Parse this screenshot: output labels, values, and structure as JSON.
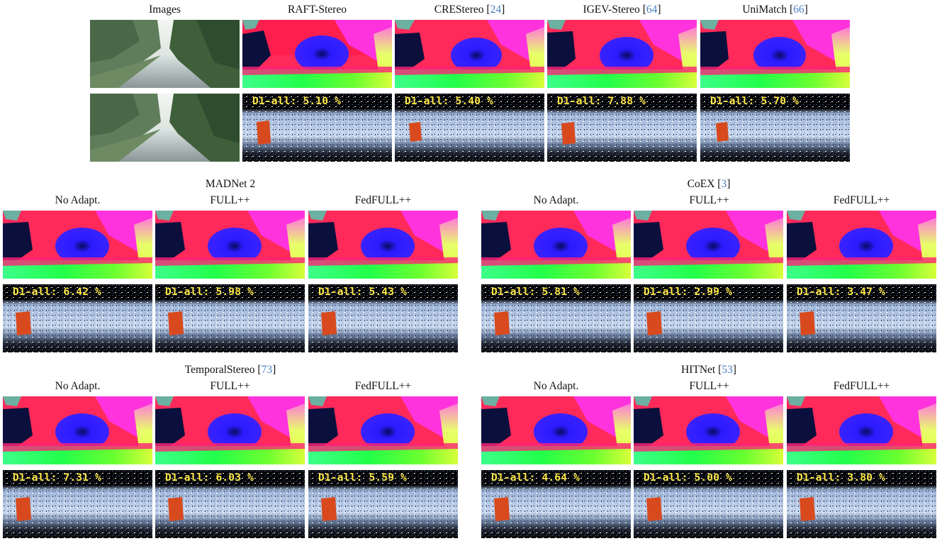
{
  "top": {
    "headers": {
      "images": "Images",
      "raft": "RAFT-Stereo",
      "crestereo": "CREStereo",
      "crestereo_ref": "24",
      "igev": "IGEV-Stereo",
      "igev_ref": "64",
      "unimatch": "UniMatch",
      "unimatch_ref": "66"
    },
    "errors": [
      "D1-all: 5.10 %",
      "D1-all: 5.40 %",
      "D1-all: 7.88 %",
      "D1-all: 5.70 %"
    ]
  },
  "columns": {
    "no_adapt": "No Adapt.",
    "full": "FULL++",
    "fedfull": "FedFULL++"
  },
  "groups": [
    {
      "title": "MADNet 2",
      "ref": "",
      "errors": [
        "D1-all: 6.42 %",
        "D1-all: 5.98 %",
        "D1-all: 5.43 %"
      ]
    },
    {
      "title": "CoEX",
      "ref": "3",
      "errors": [
        "D1-all: 5.81 %",
        "D1-all: 2.99 %",
        "D1-all: 3.47 %"
      ]
    },
    {
      "title": "TemporalStereo",
      "ref": "73",
      "errors": [
        "D1-all: 7.31 %",
        "D1-all: 6.03 %",
        "D1-all: 5.59 %"
      ]
    },
    {
      "title": "HITNet",
      "ref": "53",
      "errors": [
        "D1-all: 4.64 %",
        "D1-all: 5.00 %",
        "D1-all: 3.80 %"
      ]
    }
  ],
  "colors": {
    "error_text": "#ffe94a",
    "ref_link": "#4a7fbf"
  }
}
